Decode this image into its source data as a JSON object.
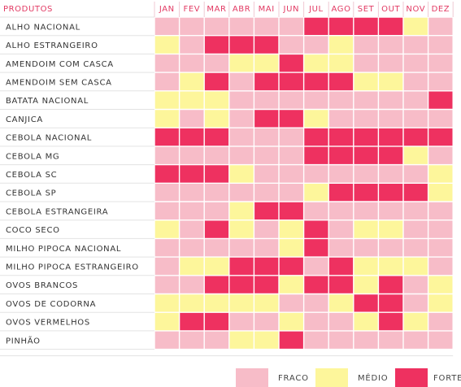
{
  "chart_data": {
    "type": "heatmap",
    "row_header": "PRODUTOS",
    "columns": [
      "JAN",
      "FEV",
      "MAR",
      "ABR",
      "MAI",
      "JUN",
      "JUL",
      "AGO",
      "SET",
      "OUT",
      "NOV",
      "DEZ"
    ],
    "levels": [
      {
        "key": "F",
        "label": "FRACO",
        "color": "#f7bcc8"
      },
      {
        "key": "M",
        "label": "MÉDIO",
        "color": "#fdf69b"
      },
      {
        "key": "S",
        "label": "FORTE",
        "color": "#ee3160"
      }
    ],
    "rows": [
      {
        "label": "ALHO NACIONAL",
        "values": [
          "F",
          "F",
          "F",
          "F",
          "F",
          "F",
          "S",
          "S",
          "S",
          "S",
          "M",
          "F"
        ]
      },
      {
        "label": "ALHO ESTRANGEIRO",
        "values": [
          "M",
          "F",
          "S",
          "S",
          "S",
          "F",
          "F",
          "M",
          "F",
          "F",
          "F",
          "F"
        ]
      },
      {
        "label": "AMENDOIM COM CASCA",
        "values": [
          "F",
          "F",
          "F",
          "M",
          "M",
          "S",
          "M",
          "M",
          "F",
          "F",
          "F",
          "F"
        ]
      },
      {
        "label": "AMENDOIM SEM CASCA",
        "values": [
          "F",
          "M",
          "S",
          "F",
          "S",
          "S",
          "S",
          "S",
          "M",
          "M",
          "F",
          "F"
        ]
      },
      {
        "label": "BATATA NACIONAL",
        "values": [
          "M",
          "M",
          "M",
          "F",
          "F",
          "F",
          "F",
          "F",
          "F",
          "F",
          "F",
          "S"
        ]
      },
      {
        "label": "CANJICA",
        "values": [
          "M",
          "F",
          "M",
          "F",
          "S",
          "S",
          "M",
          "F",
          "F",
          "F",
          "F",
          "F"
        ]
      },
      {
        "label": "CEBOLA NACIONAL",
        "values": [
          "S",
          "S",
          "S",
          "F",
          "F",
          "F",
          "S",
          "S",
          "S",
          "S",
          "S",
          "S"
        ]
      },
      {
        "label": "CEBOLA MG",
        "values": [
          "F",
          "F",
          "F",
          "F",
          "F",
          "F",
          "S",
          "S",
          "S",
          "S",
          "M",
          "F"
        ]
      },
      {
        "label": "CEBOLA SC",
        "values": [
          "S",
          "S",
          "S",
          "M",
          "F",
          "F",
          "F",
          "F",
          "F",
          "F",
          "F",
          "M"
        ]
      },
      {
        "label": "CEBOLA SP",
        "values": [
          "F",
          "F",
          "F",
          "F",
          "F",
          "F",
          "M",
          "S",
          "S",
          "S",
          "S",
          "M"
        ]
      },
      {
        "label": "CEBOLA ESTRANGEIRA",
        "values": [
          "F",
          "F",
          "F",
          "M",
          "S",
          "S",
          "F",
          "F",
          "F",
          "F",
          "F",
          "F"
        ]
      },
      {
        "label": "COCO SECO",
        "values": [
          "M",
          "F",
          "S",
          "M",
          "F",
          "M",
          "S",
          "F",
          "M",
          "M",
          "F",
          "F"
        ]
      },
      {
        "label": "MILHO PIPOCA NACIONAL",
        "values": [
          "F",
          "F",
          "F",
          "F",
          "F",
          "M",
          "S",
          "F",
          "F",
          "F",
          "F",
          "F"
        ]
      },
      {
        "label": "MILHO PIPOCA ESTRANGEIRO",
        "values": [
          "F",
          "M",
          "M",
          "S",
          "S",
          "S",
          "F",
          "S",
          "M",
          "M",
          "M",
          "F"
        ]
      },
      {
        "label": "OVOS BRANCOS",
        "values": [
          "F",
          "F",
          "S",
          "S",
          "S",
          "M",
          "S",
          "S",
          "M",
          "S",
          "F",
          "M"
        ]
      },
      {
        "label": "OVOS DE CODORNA",
        "values": [
          "M",
          "M",
          "M",
          "M",
          "M",
          "F",
          "F",
          "M",
          "S",
          "S",
          "F",
          "M"
        ]
      },
      {
        "label": "OVOS VERMELHOS",
        "values": [
          "M",
          "S",
          "S",
          "F",
          "F",
          "M",
          "F",
          "F",
          "M",
          "S",
          "M",
          "F"
        ]
      },
      {
        "label": "PINHÃO",
        "values": [
          "F",
          "F",
          "F",
          "M",
          "M",
          "S",
          "F",
          "F",
          "F",
          "F",
          "F",
          "F"
        ]
      }
    ]
  }
}
